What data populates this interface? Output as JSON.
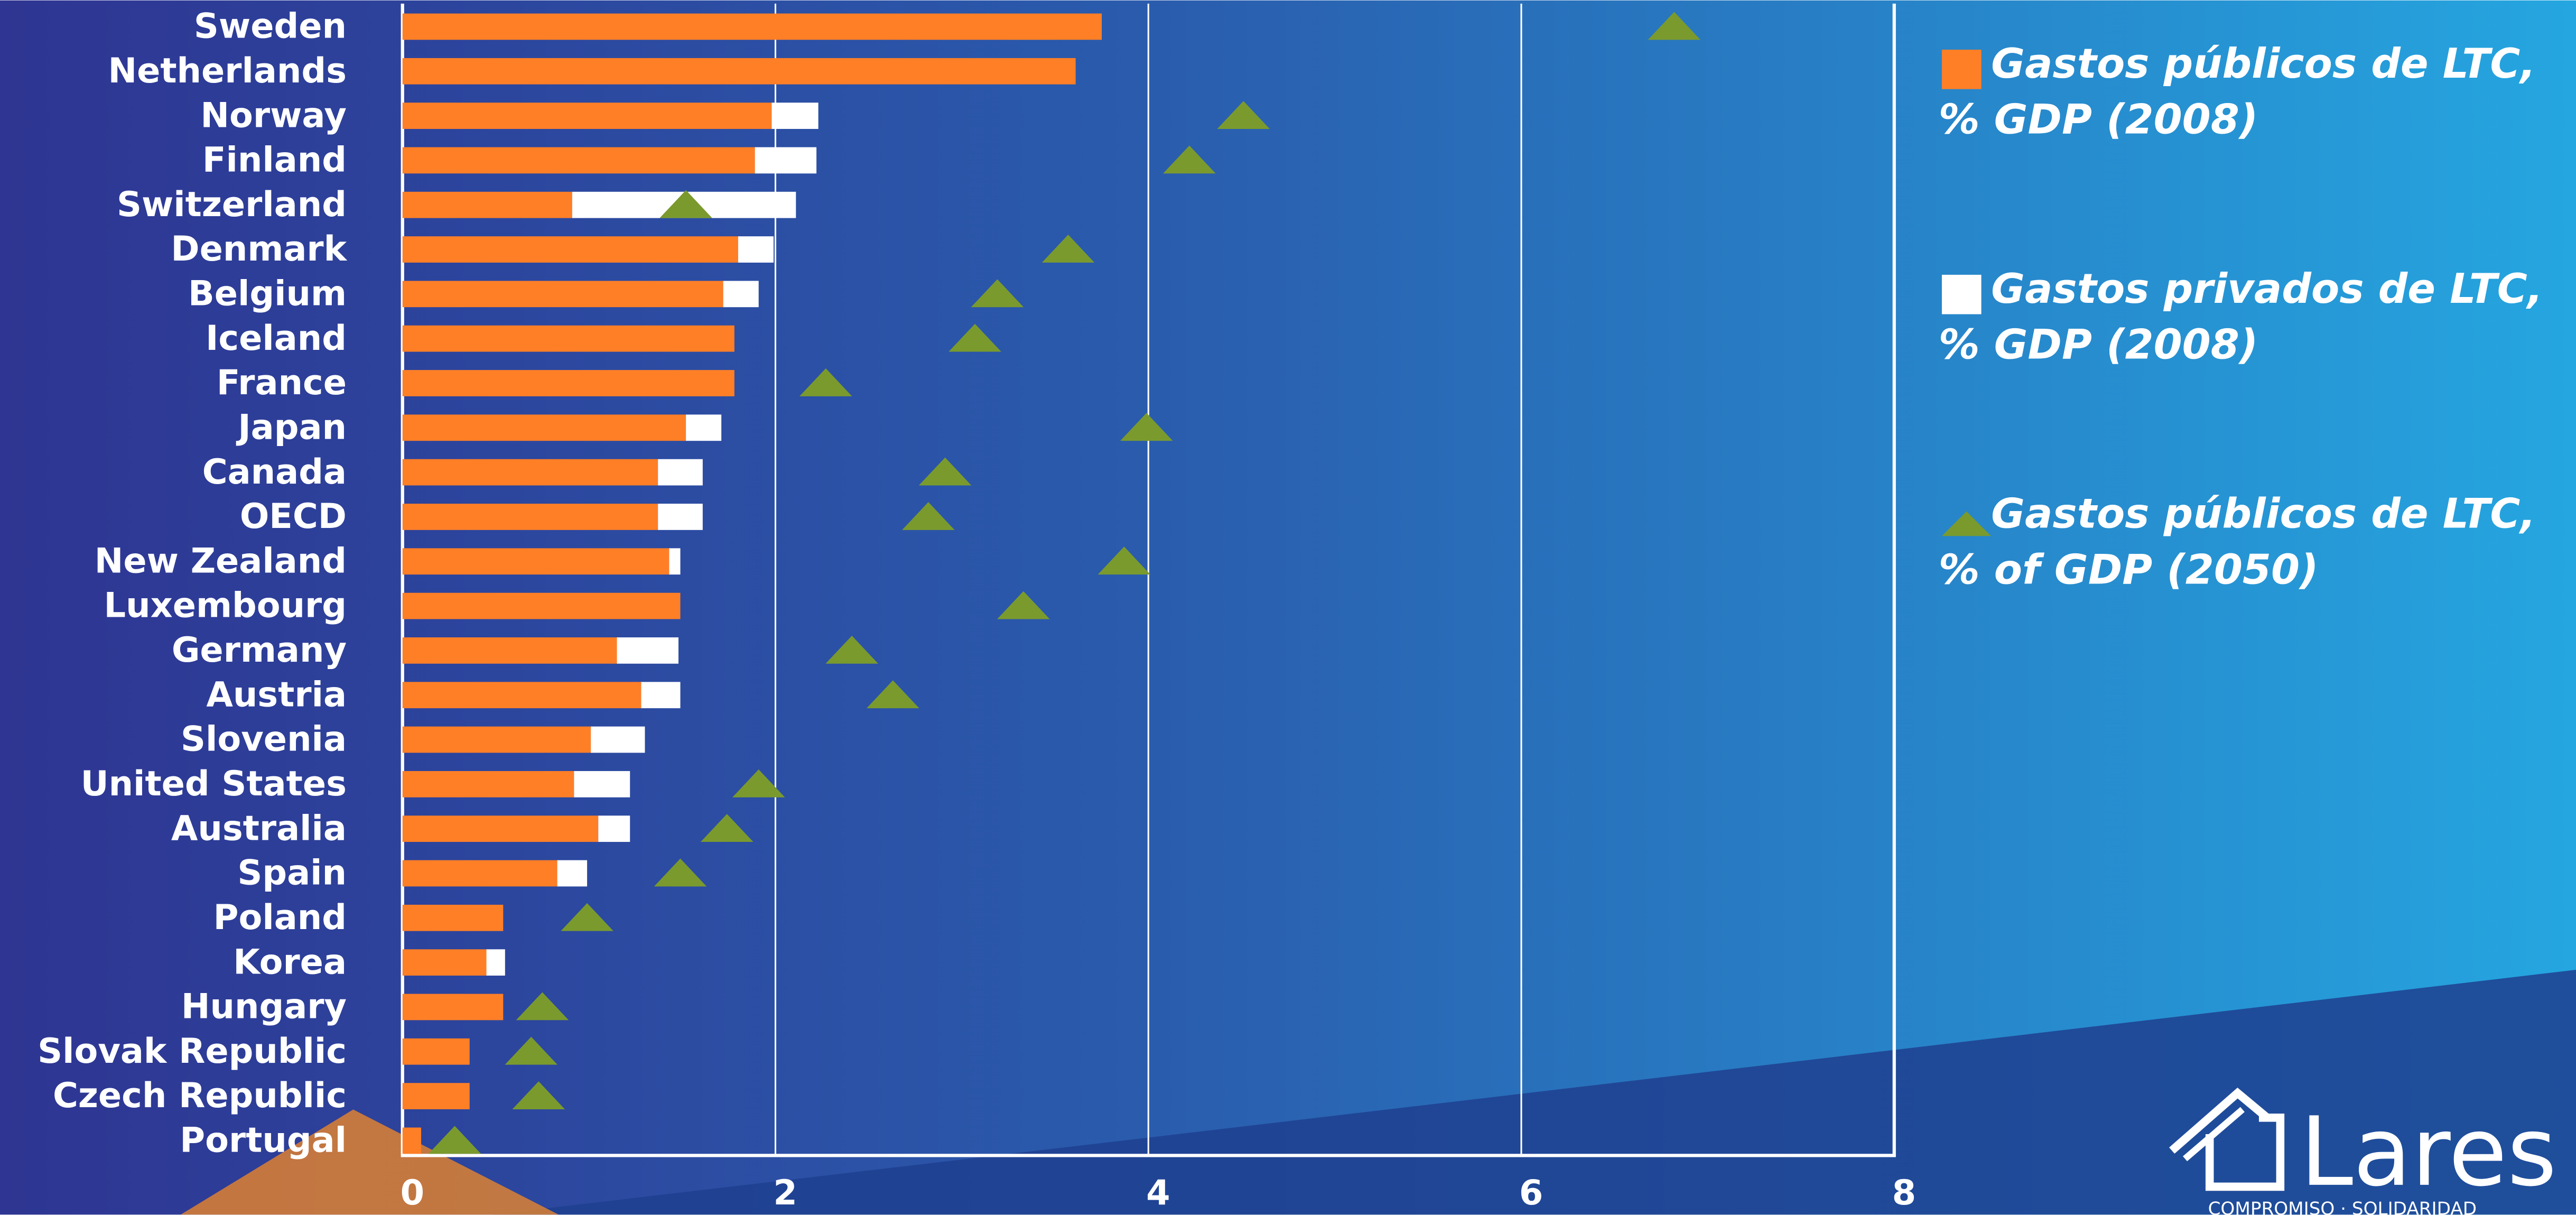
{
  "chart_data": {
    "type": "bar",
    "categories": [
      "Sweden",
      "Netherlands",
      "Norway",
      "Finland",
      "Switzerland",
      "Denmark",
      "Belgium",
      "Iceland",
      "France",
      "Japan",
      "Canada",
      "OECD",
      "New Zealand",
      "Luxembourg",
      "Germany",
      "Austria",
      "Slovenia",
      "United States",
      "Australia",
      "Spain",
      "Poland",
      "Korea",
      "Hungary",
      "Slovak Republic",
      "Czech Republic",
      "Portugal"
    ],
    "series": [
      {
        "name": "Gastos públicos de LTC, % GDP (2008)",
        "color": "#ff7f27",
        "kind": "stacked",
        "values": [
          3.75,
          3.61,
          1.98,
          1.89,
          0.91,
          1.8,
          1.72,
          1.78,
          1.78,
          1.52,
          1.37,
          1.37,
          1.43,
          1.49,
          1.15,
          1.28,
          1.01,
          0.92,
          1.05,
          0.83,
          0.54,
          0.45,
          0.54,
          0.36,
          0.36,
          0.1
        ]
      },
      {
        "name": "Gastos privados de LTC, % GDP (2008)",
        "color": "#ffffff",
        "kind": "stacked",
        "values": [
          0,
          0,
          0.25,
          0.33,
          1.2,
          0.19,
          0.19,
          0,
          0,
          0.19,
          0.24,
          0.24,
          0.06,
          0,
          0.33,
          0.21,
          0.29,
          0.3,
          0.17,
          0.16,
          0,
          0.1,
          0,
          0,
          0,
          0
        ]
      },
      {
        "name": "Gastos públicos de LTC, % of GDP (2050)",
        "color": "#7a9a2e",
        "kind": "triangle",
        "values": [
          6.82,
          null,
          4.51,
          4.22,
          1.52,
          3.57,
          3.19,
          3.07,
          2.27,
          3.99,
          2.91,
          2.82,
          3.87,
          3.33,
          2.41,
          2.63,
          null,
          1.91,
          1.74,
          1.49,
          0.99,
          null,
          0.75,
          0.69,
          0.73,
          0.28
        ]
      }
    ],
    "xlim": [
      0,
      8
    ],
    "xticks": [
      0,
      2,
      4,
      6,
      8
    ],
    "grid": true
  },
  "logo": {
    "name": "Lares",
    "tagline": "COMPROMISO · SOLIDARIDAD"
  }
}
